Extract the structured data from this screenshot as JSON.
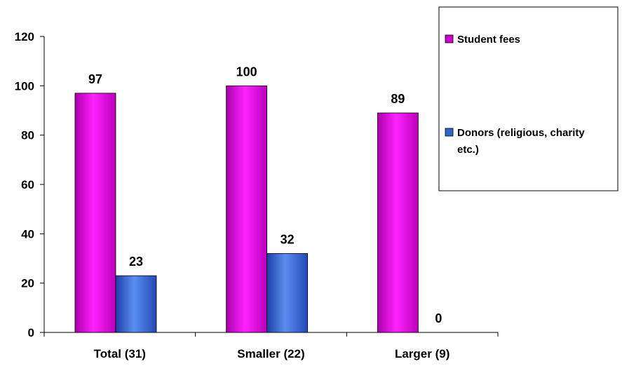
{
  "chart_data": {
    "type": "bar",
    "categories": [
      "Total (31)",
      "Smaller (22)",
      "Larger (9)"
    ],
    "series": [
      {
        "name": "Student fees",
        "values": [
          97,
          100,
          89
        ],
        "value_labels": [
          "97",
          "100",
          "89"
        ],
        "color": "#cc00cc"
      },
      {
        "name": "Donors (religious, charity etc.)",
        "values": [
          23,
          32,
          0
        ],
        "value_labels": [
          "23",
          "32",
          "0"
        ],
        "color": "#3366cc"
      }
    ],
    "y_ticks": [
      0,
      20,
      40,
      60,
      80,
      100,
      120
    ],
    "y_tick_labels": [
      "0",
      "20",
      "40",
      "60",
      "80",
      "100",
      "120"
    ],
    "ylim": [
      0,
      120
    ],
    "title": "",
    "xlabel": "",
    "ylabel": "",
    "grid": false,
    "legend_position": "top-right",
    "legend": {
      "labels": [
        "Student fees",
        "Donors (religious, charity etc.)"
      ],
      "lines": [
        [
          "Student fees"
        ],
        [
          "Donors (religious, charity",
          "etc.)"
        ]
      ]
    }
  }
}
